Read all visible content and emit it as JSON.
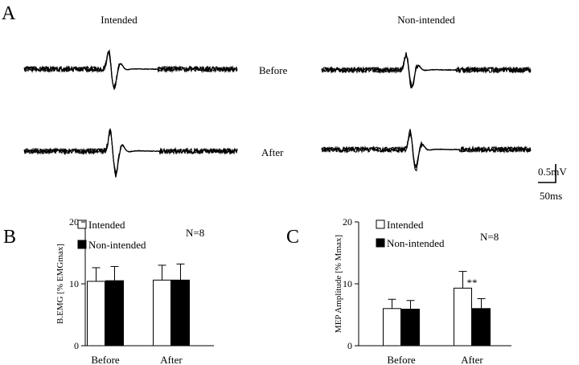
{
  "panels": {
    "a": "A",
    "b": "B",
    "c": "C"
  },
  "traces": {
    "col_intended": "Intended",
    "col_nonintended": "Non-intended",
    "row_before": "Before",
    "row_after": "After",
    "scale_v": "0.5mV",
    "scale_t": "50ms",
    "color": "#000000"
  },
  "chart_data": [
    {
      "type": "bar",
      "panel": "B",
      "ylabel": "B.EMG [% EMGmax]",
      "xlabel": "",
      "ylim": [
        0,
        20
      ],
      "yticks": [
        0,
        10,
        20
      ],
      "categories": [
        "Before",
        "After"
      ],
      "series": [
        {
          "name": "Intended",
          "color": "#ffffff",
          "values": [
            10.4,
            10.6
          ],
          "errors": [
            2.2,
            2.4
          ]
        },
        {
          "name": "Non-intended",
          "color": "#000000",
          "values": [
            10.5,
            10.6
          ],
          "errors": [
            2.3,
            2.6
          ]
        }
      ],
      "annotations": [
        "N=8"
      ],
      "legend": "top-left",
      "grid": false
    },
    {
      "type": "bar",
      "panel": "C",
      "ylabel": "MEP Amplitude [% Mmax]",
      "xlabel": "",
      "ylim": [
        0,
        20
      ],
      "yticks": [
        0,
        10,
        20
      ],
      "categories": [
        "Before",
        "After"
      ],
      "series": [
        {
          "name": "Intended",
          "color": "#ffffff",
          "values": [
            6.0,
            9.3
          ],
          "errors": [
            1.5,
            2.7
          ]
        },
        {
          "name": "Non-intended",
          "color": "#000000",
          "values": [
            5.9,
            6.0
          ],
          "errors": [
            1.4,
            1.6
          ]
        }
      ],
      "annotations": [
        "N=8",
        "**"
      ],
      "legend": "top-left",
      "grid": false
    }
  ]
}
